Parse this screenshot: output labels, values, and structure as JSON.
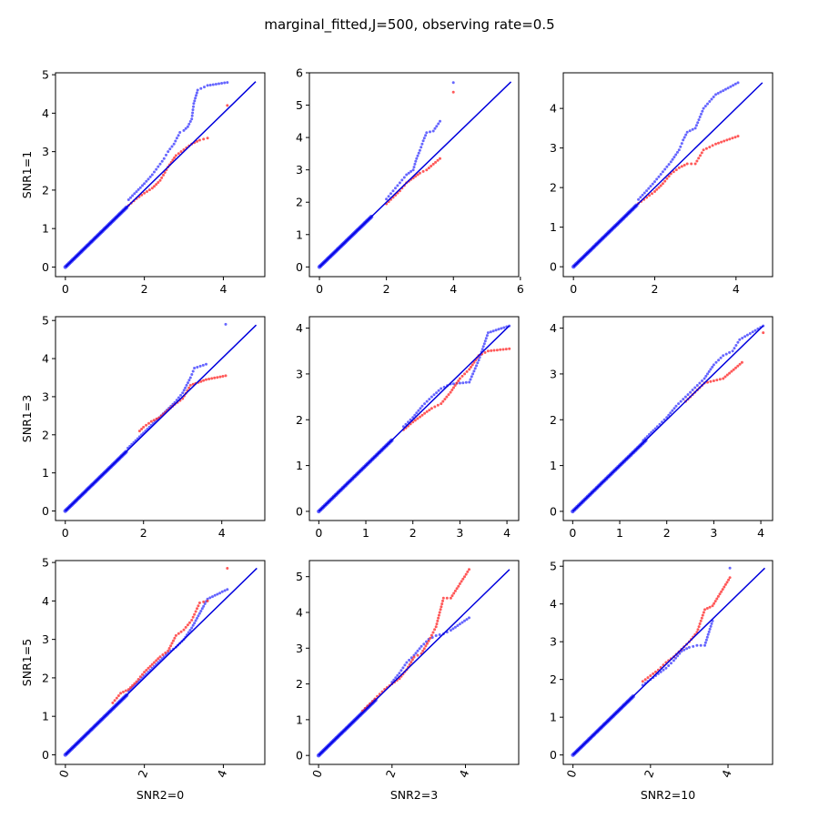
{
  "title": "marginal_fitted,J=500, observing rate=0.5",
  "colors": {
    "reference_line": "#0000dd",
    "series_a": "#3333ff",
    "series_b": "#ff2222",
    "axes": "#000000"
  },
  "chart_data": [
    {
      "type": "scatter",
      "row": 0,
      "col": 0,
      "ylabel": "SNR1=1",
      "xlabel": "",
      "xlim": [
        -0.25,
        5.05
      ],
      "ylim": [
        -0.25,
        5.05
      ],
      "xticks": [
        "0",
        "2",
        "4"
      ],
      "yticks": [
        "0",
        "1",
        "2",
        "3",
        "4",
        "5"
      ],
      "xtick_rotation": 0,
      "line_end": 4.82,
      "series": [
        {
          "color": "blue",
          "points": [
            [
              1.6,
              1.75
            ],
            [
              1.8,
              1.96
            ],
            [
              2.0,
              2.17
            ],
            [
              2.2,
              2.4
            ],
            [
              2.4,
              2.68
            ],
            [
              2.5,
              2.82
            ],
            [
              2.6,
              3.0
            ],
            [
              2.75,
              3.2
            ],
            [
              2.9,
              3.5
            ],
            [
              3.0,
              3.55
            ],
            [
              3.1,
              3.65
            ],
            [
              3.2,
              3.85
            ],
            [
              3.25,
              4.25
            ],
            [
              3.35,
              4.6
            ],
            [
              3.6,
              4.72
            ],
            [
              4.1,
              4.8
            ]
          ]
        },
        {
          "color": "red",
          "points": [
            [
              1.6,
              1.6
            ],
            [
              1.8,
              1.78
            ],
            [
              2.0,
              1.92
            ],
            [
              2.2,
              2.05
            ],
            [
              2.4,
              2.25
            ],
            [
              2.6,
              2.6
            ],
            [
              2.8,
              2.9
            ],
            [
              3.0,
              3.05
            ],
            [
              3.2,
              3.2
            ],
            [
              3.4,
              3.3
            ],
            [
              3.6,
              3.35
            ],
            [
              4.1,
              4.2
            ]
          ]
        }
      ]
    },
    {
      "type": "scatter",
      "row": 0,
      "col": 1,
      "ylabel": "",
      "xlabel": "",
      "xlim": [
        -0.3,
        5.95
      ],
      "ylim": [
        -0.3,
        6.0
      ],
      "xticks": [
        "0",
        "2",
        "4",
        "6"
      ],
      "yticks": [
        "0",
        "1",
        "2",
        "3",
        "4",
        "5",
        "6"
      ],
      "xtick_rotation": 0,
      "line_end": 5.72,
      "series": [
        {
          "color": "blue",
          "points": [
            [
              2.0,
              2.1
            ],
            [
              2.2,
              2.35
            ],
            [
              2.4,
              2.6
            ],
            [
              2.6,
              2.85
            ],
            [
              2.8,
              3.0
            ],
            [
              2.9,
              3.35
            ],
            [
              3.0,
              3.6
            ],
            [
              3.1,
              3.9
            ],
            [
              3.2,
              4.15
            ],
            [
              3.4,
              4.2
            ],
            [
              3.6,
              4.5
            ],
            [
              4.0,
              5.7
            ]
          ]
        },
        {
          "color": "red",
          "points": [
            [
              2.0,
              1.95
            ],
            [
              2.2,
              2.15
            ],
            [
              2.4,
              2.35
            ],
            [
              2.6,
              2.6
            ],
            [
              2.8,
              2.75
            ],
            [
              3.0,
              2.9
            ],
            [
              3.2,
              3.0
            ],
            [
              3.6,
              3.35
            ],
            [
              4.0,
              5.4
            ]
          ]
        }
      ]
    },
    {
      "type": "scatter",
      "row": 0,
      "col": 2,
      "ylabel": "",
      "xlabel": "",
      "xlim": [
        -0.25,
        4.9
      ],
      "ylim": [
        -0.25,
        4.9
      ],
      "xticks": [
        "0",
        "2",
        "4"
      ],
      "yticks": [
        "0",
        "1",
        "2",
        "3",
        "4"
      ],
      "xtick_rotation": 0,
      "line_end": 4.65,
      "series": [
        {
          "color": "blue",
          "points": [
            [
              1.6,
              1.7
            ],
            [
              1.8,
              1.92
            ],
            [
              2.0,
              2.15
            ],
            [
              2.2,
              2.4
            ],
            [
              2.4,
              2.65
            ],
            [
              2.6,
              2.95
            ],
            [
              2.7,
              3.2
            ],
            [
              2.8,
              3.4
            ],
            [
              3.0,
              3.5
            ],
            [
              3.2,
              4.0
            ],
            [
              3.5,
              4.35
            ],
            [
              4.05,
              4.65
            ]
          ]
        },
        {
          "color": "red",
          "points": [
            [
              1.6,
              1.6
            ],
            [
              1.8,
              1.75
            ],
            [
              2.0,
              1.9
            ],
            [
              2.2,
              2.1
            ],
            [
              2.4,
              2.35
            ],
            [
              2.6,
              2.5
            ],
            [
              2.8,
              2.6
            ],
            [
              3.0,
              2.6
            ],
            [
              3.2,
              2.95
            ],
            [
              3.5,
              3.1
            ],
            [
              4.05,
              3.3
            ]
          ]
        }
      ]
    },
    {
      "type": "scatter",
      "row": 1,
      "col": 0,
      "ylabel": "SNR1=3",
      "xlabel": "",
      "xlim": [
        -0.25,
        5.1
      ],
      "ylim": [
        -0.25,
        5.1
      ],
      "xticks": [
        "0",
        "2",
        "4"
      ],
      "yticks": [
        "0",
        "1",
        "2",
        "3",
        "4",
        "5"
      ],
      "xtick_rotation": 0,
      "line_end": 4.88,
      "series": [
        {
          "color": "blue",
          "points": [
            [
              1.6,
              1.65
            ],
            [
              1.8,
              1.85
            ],
            [
              2.0,
              2.05
            ],
            [
              2.2,
              2.25
            ],
            [
              2.4,
              2.45
            ],
            [
              2.6,
              2.65
            ],
            [
              2.8,
              2.85
            ],
            [
              3.0,
              3.1
            ],
            [
              3.2,
              3.5
            ],
            [
              3.3,
              3.75
            ],
            [
              3.6,
              3.85
            ],
            [
              4.1,
              4.9
            ]
          ]
        },
        {
          "color": "red",
          "points": [
            [
              1.9,
              2.1
            ],
            [
              2.0,
              2.2
            ],
            [
              2.2,
              2.35
            ],
            [
              2.4,
              2.45
            ],
            [
              2.8,
              2.8
            ],
            [
              3.0,
              2.95
            ],
            [
              3.2,
              3.3
            ],
            [
              3.6,
              3.45
            ],
            [
              4.1,
              3.55
            ]
          ]
        }
      ]
    },
    {
      "type": "scatter",
      "row": 1,
      "col": 1,
      "ylabel": "",
      "xlabel": "",
      "xlim": [
        -0.2,
        4.25
      ],
      "ylim": [
        -0.2,
        4.25
      ],
      "xticks": [
        "0",
        "1",
        "2",
        "3",
        "4"
      ],
      "yticks": [
        "0",
        "1",
        "2",
        "3",
        "4"
      ],
      "xtick_rotation": 0,
      "line_end": 4.05,
      "series": [
        {
          "color": "blue",
          "points": [
            [
              1.8,
              1.85
            ],
            [
              2.0,
              2.05
            ],
            [
              2.2,
              2.3
            ],
            [
              2.4,
              2.5
            ],
            [
              2.6,
              2.68
            ],
            [
              2.8,
              2.78
            ],
            [
              3.0,
              2.8
            ],
            [
              3.2,
              2.82
            ],
            [
              3.4,
              3.3
            ],
            [
              3.6,
              3.9
            ],
            [
              4.05,
              4.05
            ]
          ]
        },
        {
          "color": "red",
          "points": [
            [
              1.8,
              1.78
            ],
            [
              2.0,
              1.95
            ],
            [
              2.2,
              2.1
            ],
            [
              2.4,
              2.25
            ],
            [
              2.6,
              2.35
            ],
            [
              2.8,
              2.6
            ],
            [
              3.0,
              2.9
            ],
            [
              3.2,
              3.1
            ],
            [
              3.4,
              3.4
            ],
            [
              3.6,
              3.5
            ],
            [
              4.05,
              3.55
            ]
          ]
        }
      ]
    },
    {
      "type": "scatter",
      "row": 1,
      "col": 2,
      "ylabel": "",
      "xlabel": "",
      "xlim": [
        -0.2,
        4.25
      ],
      "ylim": [
        -0.2,
        4.25
      ],
      "xticks": [
        "0",
        "1",
        "2",
        "3",
        "4"
      ],
      "yticks": [
        "0",
        "1",
        "2",
        "3",
        "4"
      ],
      "xtick_rotation": 0,
      "line_end": 4.05,
      "series": [
        {
          "color": "blue",
          "points": [
            [
              1.5,
              1.55
            ],
            [
              1.8,
              1.85
            ],
            [
              2.0,
              2.05
            ],
            [
              2.2,
              2.3
            ],
            [
              2.4,
              2.5
            ],
            [
              2.6,
              2.7
            ],
            [
              2.8,
              2.9
            ],
            [
              3.0,
              3.2
            ],
            [
              3.2,
              3.4
            ],
            [
              3.4,
              3.5
            ],
            [
              3.55,
              3.75
            ],
            [
              4.05,
              4.05
            ]
          ]
        },
        {
          "color": "red",
          "points": [
            [
              2.4,
              2.4
            ],
            [
              2.6,
              2.6
            ],
            [
              2.8,
              2.8
            ],
            [
              3.0,
              2.85
            ],
            [
              3.2,
              2.9
            ],
            [
              3.6,
              3.25
            ],
            [
              4.05,
              3.9
            ]
          ]
        }
      ]
    },
    {
      "type": "scatter",
      "row": 2,
      "col": 0,
      "ylabel": "SNR1=5",
      "xlabel": "SNR2=0",
      "xlim": [
        -0.25,
        5.05
      ],
      "ylim": [
        -0.25,
        5.05
      ],
      "xticks": [
        "0",
        "2",
        "4"
      ],
      "yticks": [
        "0",
        "1",
        "2",
        "3",
        "4",
        "5"
      ],
      "xtick_rotation": -70,
      "line_end": 4.85,
      "series": [
        {
          "color": "blue",
          "points": [
            [
              1.6,
              1.65
            ],
            [
              1.8,
              1.85
            ],
            [
              2.0,
              2.05
            ],
            [
              2.2,
              2.25
            ],
            [
              2.4,
              2.45
            ],
            [
              2.6,
              2.65
            ],
            [
              2.8,
              2.8
            ],
            [
              3.0,
              3.0
            ],
            [
              3.2,
              3.3
            ],
            [
              3.6,
              4.05
            ],
            [
              4.1,
              4.3
            ]
          ]
        },
        {
          "color": "red",
          "points": [
            [
              1.2,
              1.35
            ],
            [
              1.4,
              1.6
            ],
            [
              1.6,
              1.7
            ],
            [
              1.8,
              1.9
            ],
            [
              2.0,
              2.15
            ],
            [
              2.2,
              2.35
            ],
            [
              2.4,
              2.55
            ],
            [
              2.6,
              2.7
            ],
            [
              2.8,
              3.1
            ],
            [
              3.0,
              3.25
            ],
            [
              3.2,
              3.5
            ],
            [
              3.4,
              3.95
            ],
            [
              3.6,
              4.0
            ],
            [
              4.1,
              4.85
            ]
          ]
        }
      ]
    },
    {
      "type": "scatter",
      "row": 2,
      "col": 1,
      "ylabel": "",
      "xlabel": "SNR2=3",
      "xlim": [
        -0.25,
        5.45
      ],
      "ylim": [
        -0.25,
        5.45
      ],
      "xticks": [
        "0",
        "2",
        "4"
      ],
      "yticks": [
        "0",
        "1",
        "2",
        "3",
        "4",
        "5"
      ],
      "xtick_rotation": -70,
      "line_end": 5.2,
      "series": [
        {
          "color": "blue",
          "points": [
            [
              2.0,
              2.05
            ],
            [
              2.2,
              2.3
            ],
            [
              2.4,
              2.6
            ],
            [
              2.6,
              2.8
            ],
            [
              2.8,
              3.05
            ],
            [
              3.0,
              3.25
            ],
            [
              3.2,
              3.35
            ],
            [
              3.4,
              3.4
            ],
            [
              3.6,
              3.5
            ],
            [
              4.1,
              3.85
            ]
          ]
        },
        {
          "color": "red",
          "points": [
            [
              1.2,
              1.25
            ],
            [
              1.4,
              1.45
            ],
            [
              1.6,
              1.65
            ],
            [
              1.8,
              1.85
            ],
            [
              2.0,
              2.0
            ],
            [
              2.2,
              2.15
            ],
            [
              2.4,
              2.4
            ],
            [
              2.6,
              2.75
            ],
            [
              2.8,
              2.85
            ],
            [
              3.0,
              3.2
            ],
            [
              3.2,
              3.6
            ],
            [
              3.4,
              4.4
            ],
            [
              3.6,
              4.4
            ],
            [
              4.1,
              5.2
            ]
          ]
        }
      ]
    },
    {
      "type": "scatter",
      "row": 2,
      "col": 2,
      "ylabel": "",
      "xlabel": "SNR2=10",
      "xlim": [
        -0.25,
        5.15
      ],
      "ylim": [
        -0.25,
        5.15
      ],
      "xticks": [
        "0",
        "2",
        "4"
      ],
      "yticks": [
        "0",
        "1",
        "2",
        "3",
        "4",
        "5"
      ],
      "xtick_rotation": -70,
      "line_end": 4.95,
      "series": [
        {
          "color": "blue",
          "points": [
            [
              1.8,
              1.85
            ],
            [
              2.0,
              2.0
            ],
            [
              2.2,
              2.15
            ],
            [
              2.4,
              2.3
            ],
            [
              2.6,
              2.5
            ],
            [
              2.8,
              2.75
            ],
            [
              3.0,
              2.85
            ],
            [
              3.2,
              2.9
            ],
            [
              3.4,
              2.9
            ],
            [
              3.6,
              3.55
            ],
            [
              4.05,
              4.95
            ]
          ]
        },
        {
          "color": "red",
          "points": [
            [
              1.8,
              1.95
            ],
            [
              2.0,
              2.1
            ],
            [
              2.2,
              2.25
            ],
            [
              2.4,
              2.45
            ],
            [
              2.6,
              2.6
            ],
            [
              2.8,
              2.8
            ],
            [
              3.0,
              3.0
            ],
            [
              3.2,
              3.25
            ],
            [
              3.4,
              3.85
            ],
            [
              3.6,
              3.95
            ],
            [
              4.05,
              4.7
            ]
          ]
        }
      ]
    }
  ]
}
